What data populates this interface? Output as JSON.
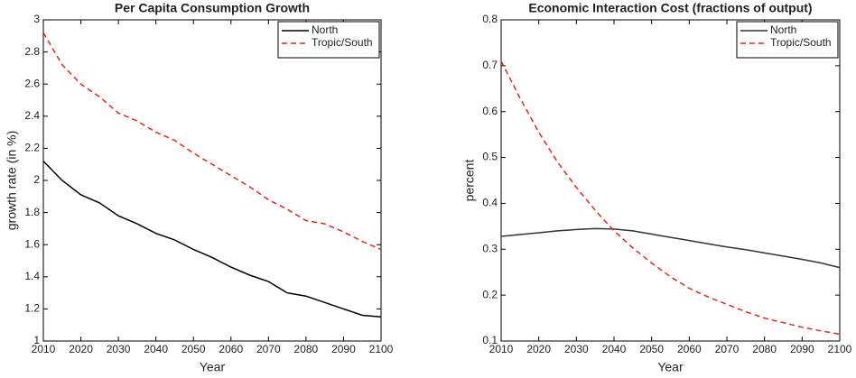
{
  "chart_data": [
    {
      "type": "line",
      "title": "Per Capita Consumption Growth",
      "x_label": "Year",
      "y_label": "growth rate (in %)",
      "x": [
        2010,
        2015,
        2020,
        2025,
        2030,
        2035,
        2040,
        2045,
        2050,
        2055,
        2060,
        2065,
        2070,
        2075,
        2080,
        2085,
        2090,
        2095,
        2100
      ],
      "series": [
        {
          "name": "North",
          "color": "#000000",
          "linestyle": "solid",
          "values": [
            2.12,
            2.0,
            1.91,
            1.86,
            1.78,
            1.73,
            1.67,
            1.63,
            1.57,
            1.52,
            1.46,
            1.41,
            1.37,
            1.3,
            1.28,
            1.24,
            1.2,
            1.16,
            1.15
          ]
        },
        {
          "name": "Tropic/South",
          "color": "#e8261c",
          "linestyle": "dashed",
          "values": [
            2.92,
            2.72,
            2.6,
            2.52,
            2.42,
            2.37,
            2.3,
            2.25,
            2.17,
            2.1,
            2.03,
            1.96,
            1.88,
            1.82,
            1.75,
            1.73,
            1.68,
            1.62,
            1.57
          ]
        }
      ],
      "xlim": [
        2010,
        2100
      ],
      "xticks": [
        2010,
        2020,
        2030,
        2040,
        2050,
        2060,
        2070,
        2080,
        2090,
        2100
      ],
      "ylim": [
        1,
        3
      ],
      "yticks": [
        1,
        1.2,
        1.4,
        1.6,
        1.8,
        2,
        2.2,
        2.4,
        2.6,
        2.8,
        3
      ],
      "legend": "upper right",
      "grid": false
    },
    {
      "type": "line",
      "title": "Economic Interaction Cost (fractions of output)",
      "x_label": "Year",
      "y_label": "percent",
      "x": [
        2010,
        2015,
        2020,
        2025,
        2030,
        2035,
        2040,
        2045,
        2050,
        2055,
        2060,
        2065,
        2070,
        2075,
        2080,
        2085,
        2090,
        2095,
        2100
      ],
      "series": [
        {
          "name": "North",
          "color": "#333333",
          "linestyle": "solid",
          "values": [
            0.328,
            0.332,
            0.336,
            0.34,
            0.343,
            0.345,
            0.344,
            0.34,
            0.333,
            0.326,
            0.319,
            0.312,
            0.305,
            0.299,
            0.292,
            0.285,
            0.278,
            0.27,
            0.26
          ]
        },
        {
          "name": "Tropic/South",
          "color": "#e8261c",
          "linestyle": "dashed",
          "values": [
            0.71,
            0.63,
            0.555,
            0.49,
            0.435,
            0.385,
            0.34,
            0.303,
            0.27,
            0.24,
            0.215,
            0.196,
            0.18,
            0.164,
            0.15,
            0.14,
            0.13,
            0.122,
            0.115
          ]
        }
      ],
      "xlim": [
        2010,
        2100
      ],
      "xticks": [
        2010,
        2020,
        2030,
        2040,
        2050,
        2060,
        2070,
        2080,
        2090,
        2100
      ],
      "ylim": [
        0.1,
        0.8
      ],
      "yticks": [
        0.1,
        0.2,
        0.3,
        0.4,
        0.5,
        0.6,
        0.7,
        0.8
      ],
      "legend": "upper right",
      "grid": false
    }
  ]
}
